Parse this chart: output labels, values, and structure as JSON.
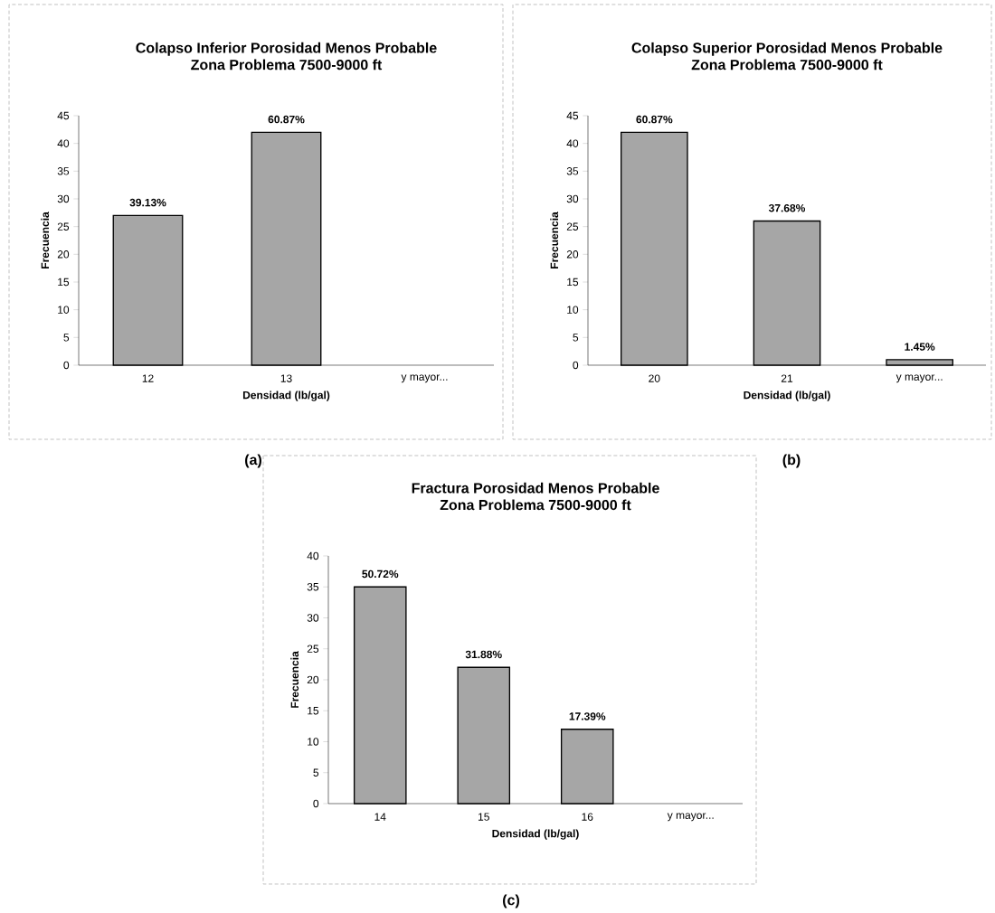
{
  "chart_data": [
    {
      "type": "bar",
      "title": "Colapso Inferior Porosidad Menos Probable",
      "subtitle": "Zona Problema 7500-9000 ft",
      "xlabel": "Densidad (lb/gal)",
      "ylabel": "Frecuencia",
      "categories": [
        "12",
        "13",
        "y mayor..."
      ],
      "values": [
        27,
        42,
        0
      ],
      "color": "#a6a6a6",
      "ylim": [
        0,
        45
      ],
      "yticks": [
        0,
        5,
        10,
        15,
        20,
        25,
        30,
        35,
        40,
        45
      ],
      "annotations": [
        {
          "text": "39.13%",
          "x": "12",
          "y": 27
        },
        {
          "text": "60.87%",
          "x": "13",
          "y": 42
        },
        "(a)"
      ]
    },
    {
      "type": "bar",
      "title": "Colapso Superior Porosidad Menos Probable",
      "subtitle": "Zona Problema 7500-9000 ft",
      "xlabel": "Densidad (lb/gal)",
      "ylabel": "Frecuencia",
      "categories": [
        "20",
        "21",
        "y mayor..."
      ],
      "values": [
        42,
        26,
        1
      ],
      "color": "#a6a6a6",
      "ylim": [
        0,
        45
      ],
      "yticks": [
        0,
        5,
        10,
        15,
        20,
        25,
        30,
        35,
        40,
        45
      ],
      "annotations": [
        {
          "text": "60.87%",
          "x": "20",
          "y": 42
        },
        {
          "text": "37.68%",
          "x": "21",
          "y": 26
        },
        {
          "text": "1.45%",
          "x": "y mayor...",
          "y": 1
        },
        "(b)"
      ]
    },
    {
      "type": "bar",
      "title": "Fractura Porosidad Menos Probable",
      "subtitle": "Zona Problema 7500-9000 ft",
      "xlabel": "Densidad (lb/gal)",
      "ylabel": "Frecuencia",
      "categories": [
        "14",
        "15",
        "16",
        "y mayor..."
      ],
      "values": [
        35,
        22,
        12,
        0
      ],
      "color": "#a6a6a6",
      "ylim": [
        0,
        40
      ],
      "yticks": [
        0,
        5,
        10,
        15,
        20,
        25,
        30,
        35,
        40
      ],
      "annotations": [
        {
          "text": "50.72%",
          "x": "14",
          "y": 35
        },
        {
          "text": "31.88%",
          "x": "15",
          "y": 22
        },
        {
          "text": "17.39%",
          "x": "16",
          "y": 12
        },
        "(c)"
      ]
    }
  ]
}
